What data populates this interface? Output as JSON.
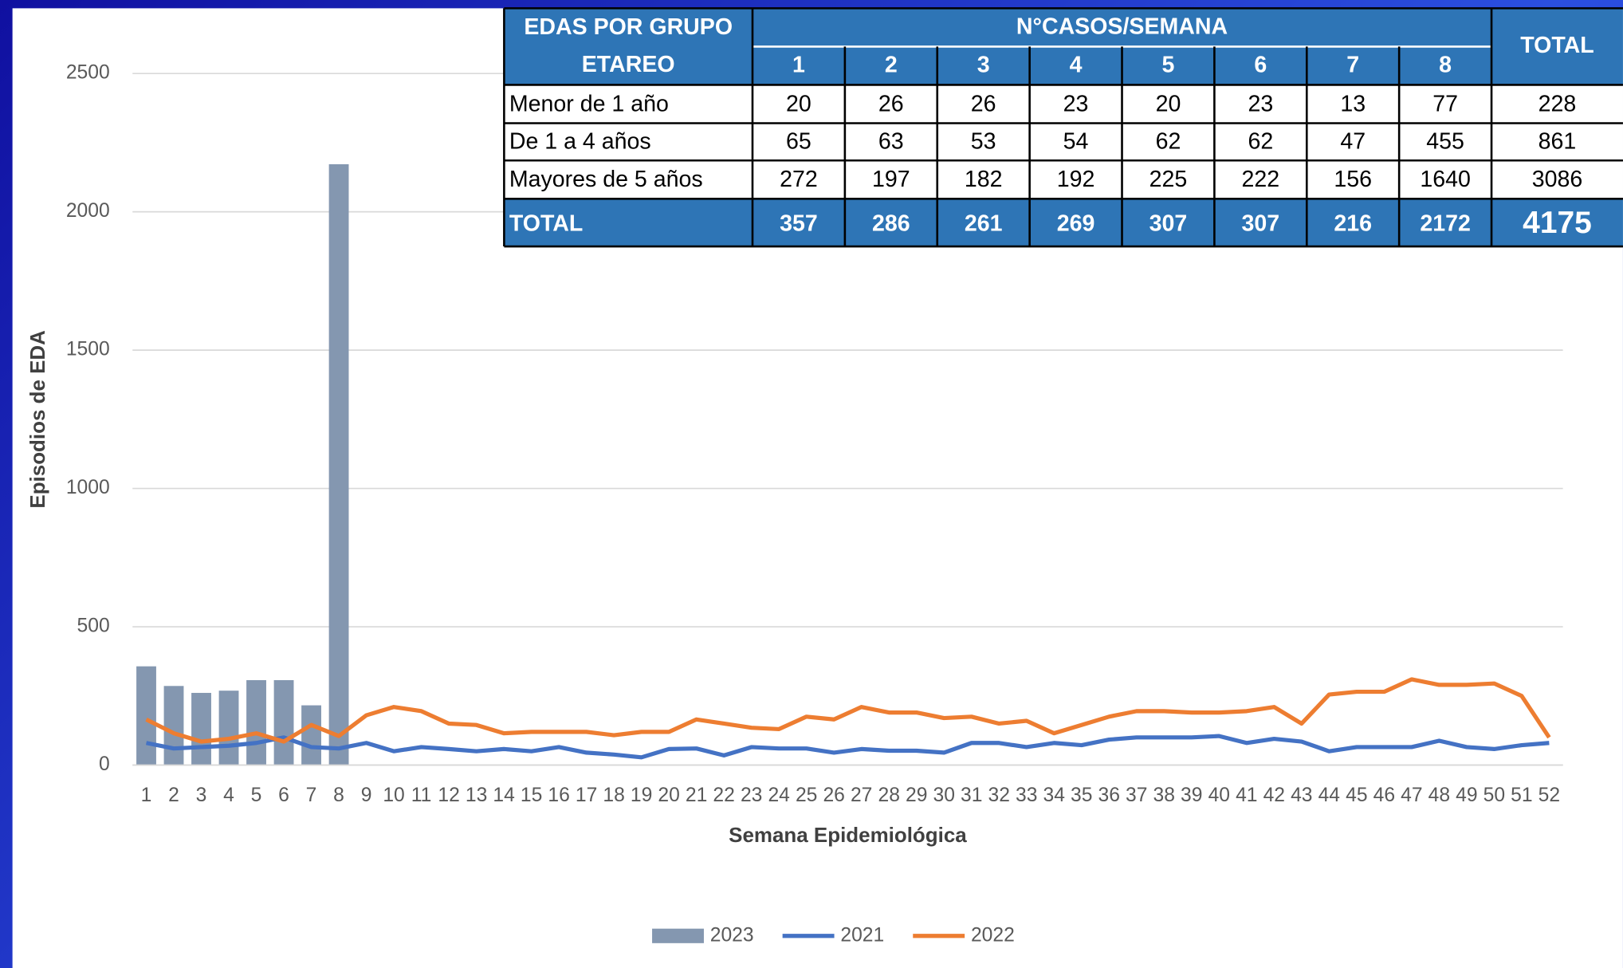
{
  "chart_data": {
    "type": "bar_line",
    "ylabel": "Episodios de EDA",
    "xlabel": "Semana Epidemiológica",
    "categories": [
      1,
      2,
      3,
      4,
      5,
      6,
      7,
      8,
      9,
      10,
      11,
      12,
      13,
      14,
      15,
      16,
      17,
      18,
      19,
      20,
      21,
      22,
      23,
      24,
      25,
      26,
      27,
      28,
      29,
      30,
      31,
      32,
      33,
      34,
      35,
      36,
      37,
      38,
      39,
      40,
      41,
      42,
      43,
      44,
      45,
      46,
      47,
      48,
      49,
      50,
      51,
      52
    ],
    "ylim": [
      0,
      2500
    ],
    "yticks": [
      0,
      500,
      1000,
      1500,
      2000,
      2500
    ],
    "grid": true,
    "legend": "bottom",
    "series": [
      {
        "name": "2023",
        "type": "bar",
        "color": "#8497b0",
        "values": [
          357,
          286,
          261,
          269,
          307,
          307,
          216,
          2172,
          null,
          null,
          null,
          null,
          null,
          null,
          null,
          null,
          null,
          null,
          null,
          null,
          null,
          null,
          null,
          null,
          null,
          null,
          null,
          null,
          null,
          null,
          null,
          null,
          null,
          null,
          null,
          null,
          null,
          null,
          null,
          null,
          null,
          null,
          null,
          null,
          null,
          null,
          null,
          null,
          null,
          null,
          null,
          null
        ]
      },
      {
        "name": "2021",
        "type": "line",
        "color": "#4472c4",
        "values": [
          80,
          60,
          65,
          70,
          80,
          100,
          65,
          60,
          80,
          50,
          65,
          58,
          50,
          58,
          50,
          65,
          45,
          38,
          28,
          58,
          60,
          35,
          65,
          60,
          60,
          45,
          58,
          52,
          52,
          45,
          80,
          80,
          65,
          80,
          72,
          92,
          100,
          100,
          100,
          105,
          80,
          95,
          85,
          50,
          65,
          65,
          65,
          88,
          65,
          58,
          72,
          80
        ]
      },
      {
        "name": "2022",
        "type": "line",
        "color": "#ed7d31",
        "values": [
          165,
          115,
          85,
          95,
          115,
          85,
          145,
          105,
          180,
          210,
          195,
          150,
          145,
          115,
          120,
          120,
          120,
          108,
          120,
          120,
          165,
          150,
          135,
          130,
          175,
          165,
          210,
          190,
          190,
          170,
          175,
          150,
          160,
          115,
          145,
          175,
          195,
          195,
          190,
          190,
          195,
          210,
          150,
          255,
          265,
          265,
          310,
          290,
          290,
          295,
          250,
          100
        ]
      }
    ]
  },
  "table": {
    "group_header": "EDAS POR GRUPO ETAREO",
    "weeks_header": "N°CASOS/SEMANA",
    "total_header": "TOTAL",
    "weeks": [
      1,
      2,
      3,
      4,
      5,
      6,
      7,
      8
    ],
    "rows": [
      [
        "Menor de 1 año",
        20,
        26,
        26,
        23,
        20,
        23,
        13,
        77,
        228
      ],
      [
        "De 1 a 4 años",
        65,
        63,
        53,
        54,
        62,
        62,
        47,
        455,
        861
      ],
      [
        "Mayores de 5 años",
        272,
        197,
        182,
        192,
        225,
        222,
        156,
        1640,
        3086
      ]
    ],
    "total_row": [
      "TOTAL",
      357,
      286,
      261,
      269,
      307,
      307,
      216,
      2172,
      4175
    ]
  }
}
